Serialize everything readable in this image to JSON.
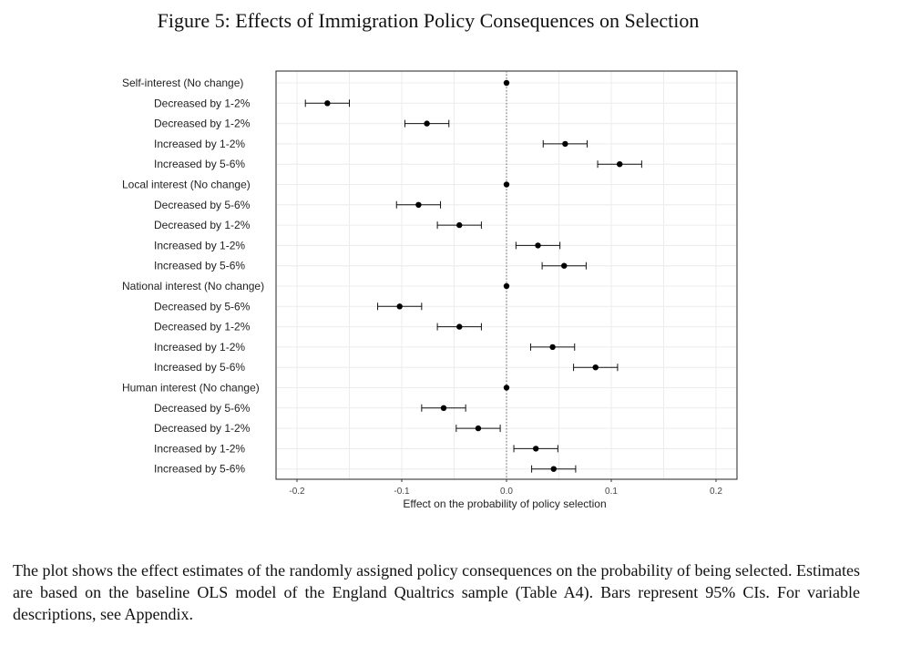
{
  "figure": {
    "title": "Figure 5: Effects of Immigration Policy Consequences on Selection",
    "caption": "The plot shows the effect estimates of the randomly assigned policy consequences on the probability of being selected. Estimates are based on the baseline OLS model of the England Qualtrics sample (Table A4). Bars represent 95% CIs. For variable descriptions, see Appendix."
  },
  "chart_data": {
    "type": "scatter",
    "subtype": "coefficient-plot",
    "title": "Figure 5: Effects of Immigration Policy Consequences on Selection",
    "xlabel": "Effect on the probability of policy selection",
    "ylabel": "",
    "xlim": [
      -0.22,
      0.22
    ],
    "xticks": [
      -0.2,
      -0.1,
      0.0,
      0.1,
      0.2
    ],
    "xtick_labels": [
      "-0.2",
      "-0.1",
      "0.0",
      "0.1",
      "0.2"
    ],
    "reference_line": 0.0,
    "grid": true,
    "rows": [
      {
        "label": "Self-interest (No change)",
        "header": true,
        "estimate": 0.0
      },
      {
        "label": "Decreased by 1-2%",
        "header": false,
        "estimate": -0.171,
        "lo": -0.192,
        "hi": -0.15
      },
      {
        "label": "Decreased by 1-2%",
        "header": false,
        "estimate": -0.076,
        "lo": -0.097,
        "hi": -0.055
      },
      {
        "label": "Increased by 1-2%",
        "header": false,
        "estimate": 0.056,
        "lo": 0.035,
        "hi": 0.077
      },
      {
        "label": "Increased by 5-6%",
        "header": false,
        "estimate": 0.108,
        "lo": 0.087,
        "hi": 0.129
      },
      {
        "label": "Local interest (No change)",
        "header": true,
        "estimate": 0.0
      },
      {
        "label": "Decreased by 5-6%",
        "header": false,
        "estimate": -0.084,
        "lo": -0.105,
        "hi": -0.063
      },
      {
        "label": "Decreased by 1-2%",
        "header": false,
        "estimate": -0.045,
        "lo": -0.066,
        "hi": -0.024
      },
      {
        "label": "Increased by 1-2%",
        "header": false,
        "estimate": 0.03,
        "lo": 0.009,
        "hi": 0.051
      },
      {
        "label": "Increased by 5-6%",
        "header": false,
        "estimate": 0.055,
        "lo": 0.034,
        "hi": 0.076
      },
      {
        "label": "National interest (No change)",
        "header": true,
        "estimate": 0.0
      },
      {
        "label": "Decreased by 5-6%",
        "header": false,
        "estimate": -0.102,
        "lo": -0.123,
        "hi": -0.081
      },
      {
        "label": "Decreased by 1-2%",
        "header": false,
        "estimate": -0.045,
        "lo": -0.066,
        "hi": -0.024
      },
      {
        "label": "Increased by 1-2%",
        "header": false,
        "estimate": 0.044,
        "lo": 0.023,
        "hi": 0.065
      },
      {
        "label": "Increased by 5-6%",
        "header": false,
        "estimate": 0.085,
        "lo": 0.064,
        "hi": 0.106
      },
      {
        "label": "Human interest (No change)",
        "header": true,
        "estimate": 0.0
      },
      {
        "label": "Decreased by 5-6%",
        "header": false,
        "estimate": -0.06,
        "lo": -0.081,
        "hi": -0.039
      },
      {
        "label": "Decreased by 1-2%",
        "header": false,
        "estimate": -0.027,
        "lo": -0.048,
        "hi": -0.006
      },
      {
        "label": "Increased by 1-2%",
        "header": false,
        "estimate": 0.028,
        "lo": 0.007,
        "hi": 0.049
      },
      {
        "label": "Increased by 5-6%",
        "header": false,
        "estimate": 0.045,
        "lo": 0.024,
        "hi": 0.066
      }
    ]
  }
}
